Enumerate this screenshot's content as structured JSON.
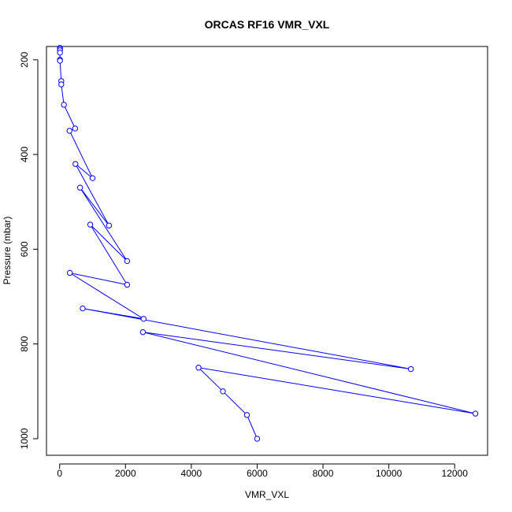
{
  "chart_data": {
    "type": "line",
    "title": "ORCAS RF16 VMR_VXL",
    "xlabel": "VMR_VXL",
    "ylabel": "Pressure (mbar)",
    "xlim": [
      -400,
      13000
    ],
    "ylim": [
      1035,
      172
    ],
    "y_reversed": true,
    "x_ticks": [
      0,
      2000,
      4000,
      6000,
      8000,
      10000,
      12000
    ],
    "y_ticks": [
      200,
      400,
      600,
      800,
      1000
    ],
    "x_tick_labels": [
      "0",
      "2000",
      "4000",
      "6000",
      "8000",
      "10000",
      "12000"
    ],
    "y_tick_labels": [
      "200",
      "400",
      "600",
      "800",
      "1000"
    ],
    "grid": false,
    "legend": "none",
    "series": [
      {
        "color": "#0000ff",
        "marker": "open-circle",
        "points": [
          {
            "x": 10,
            "y": 175
          },
          {
            "x": 10,
            "y": 177
          },
          {
            "x": 10,
            "y": 180
          },
          {
            "x": 10,
            "y": 185
          },
          {
            "x": 10,
            "y": 200
          },
          {
            "x": 10,
            "y": 202
          },
          {
            "x": 50,
            "y": 245
          },
          {
            "x": 50,
            "y": 252
          },
          {
            "x": 130,
            "y": 295
          },
          {
            "x": 470,
            "y": 345
          },
          {
            "x": 300,
            "y": 350
          },
          {
            "x": 1000,
            "y": 450
          },
          {
            "x": 480,
            "y": 420
          },
          {
            "x": 1500,
            "y": 550
          },
          {
            "x": 620,
            "y": 470
          },
          {
            "x": 2050,
            "y": 625
          },
          {
            "x": 930,
            "y": 548
          },
          {
            "x": 2050,
            "y": 675
          },
          {
            "x": 310,
            "y": 650
          },
          {
            "x": 2550,
            "y": 747
          },
          {
            "x": 700,
            "y": 725
          },
          {
            "x": 10670,
            "y": 853
          },
          {
            "x": 2530,
            "y": 775
          },
          {
            "x": 12630,
            "y": 947
          },
          {
            "x": 4220,
            "y": 850
          },
          {
            "x": 4960,
            "y": 900
          },
          {
            "x": 5690,
            "y": 950
          },
          {
            "x": 6000,
            "y": 1000
          }
        ]
      }
    ]
  }
}
